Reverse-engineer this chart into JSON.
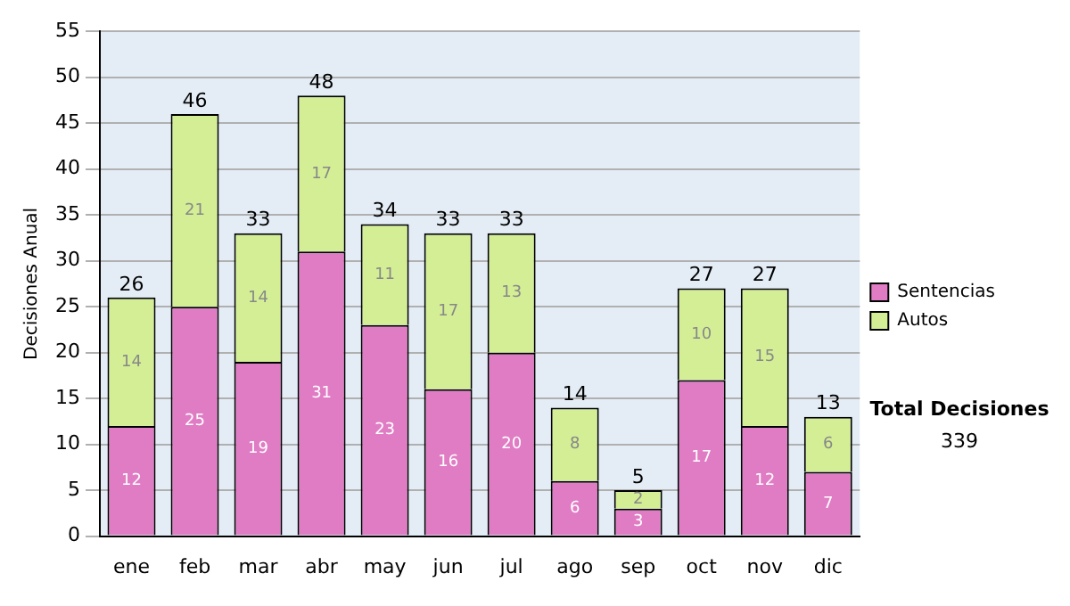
{
  "chart_data": {
    "type": "bar",
    "stacked": true,
    "ylabel": "Decisiones Anual",
    "categories": [
      "ene",
      "feb",
      "mar",
      "abr",
      "may",
      "jun",
      "jul",
      "ago",
      "sep",
      "oct",
      "nov",
      "dic"
    ],
    "series": [
      {
        "name": "Sentencias",
        "color": "#e07cc4",
        "values": [
          12,
          25,
          19,
          31,
          23,
          16,
          20,
          6,
          3,
          17,
          12,
          7
        ]
      },
      {
        "name": "Autos",
        "color": "#d4ee96",
        "values": [
          14,
          21,
          14,
          17,
          11,
          17,
          13,
          8,
          2,
          10,
          15,
          6
        ]
      }
    ],
    "ylim": [
      0,
      55
    ],
    "yticks": [
      0,
      5,
      10,
      15,
      20,
      25,
      30,
      35,
      40,
      45,
      50,
      55
    ],
    "grid": "y",
    "legend": "right",
    "data_labels": true,
    "totals": [
      "26",
      "46",
      "33",
      "48",
      "34",
      "33",
      "33",
      "14",
      "5",
      "27",
      "27",
      "13"
    ],
    "annotations": [
      "Total Decisiones",
      "339"
    ]
  }
}
